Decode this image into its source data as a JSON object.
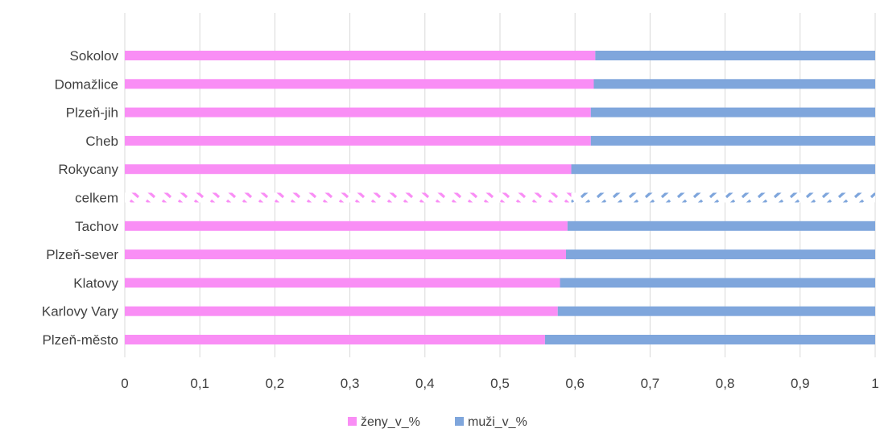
{
  "chart_data": {
    "type": "bar",
    "orientation": "horizontal",
    "stacked": true,
    "categories": [
      "Sokolov",
      "Domažlice",
      "Plzeň-jih",
      "Cheb",
      "Rokycany",
      "celkem",
      "Tachov",
      "Plzeň-sever",
      "Klatovy",
      "Karlovy Vary",
      "Plzeň-město"
    ],
    "highlight_category": "celkem",
    "series": [
      {
        "name": "ženy_v_%",
        "color": "#f98ef5",
        "values": [
          0.627,
          0.625,
          0.621,
          0.621,
          0.595,
          0.595,
          0.59,
          0.588,
          0.58,
          0.577,
          0.56
        ]
      },
      {
        "name": "muži_v_%",
        "color": "#7fa6dc",
        "values": [
          0.373,
          0.375,
          0.379,
          0.379,
          0.405,
          0.405,
          0.41,
          0.412,
          0.42,
          0.423,
          0.44
        ]
      }
    ],
    "x_ticks": [
      "0",
      "0,1",
      "0,2",
      "0,3",
      "0,4",
      "0,5",
      "0,6",
      "0,7",
      "0,8",
      "0,9",
      "1"
    ],
    "xlim": [
      0,
      1
    ],
    "grid": true,
    "legend_position": "bottom"
  }
}
